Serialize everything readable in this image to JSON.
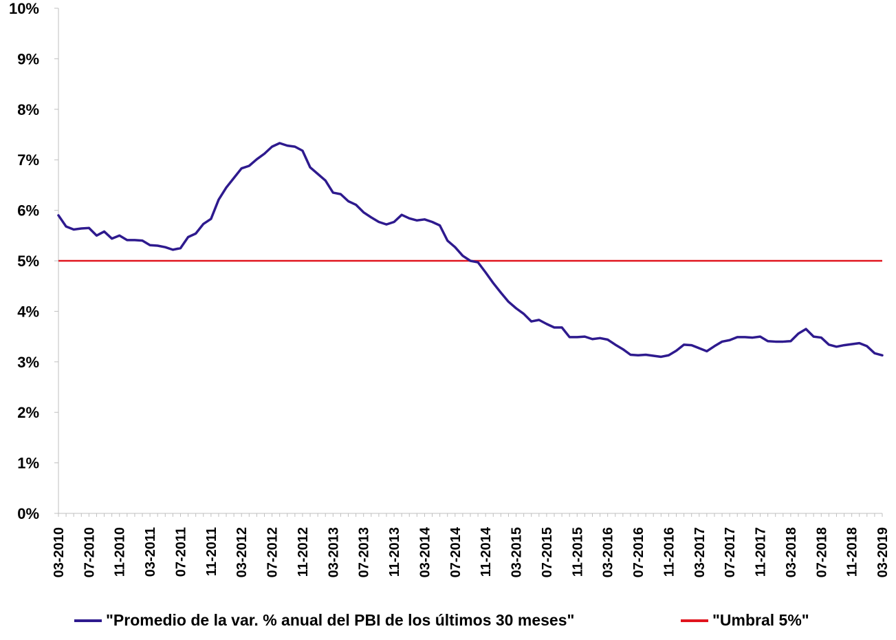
{
  "chart_data": {
    "type": "line",
    "title": "",
    "xlabel": "",
    "ylabel": "",
    "ylim": [
      0,
      10
    ],
    "y_ticks": [
      "0%",
      "1%",
      "2%",
      "3%",
      "4%",
      "5%",
      "6%",
      "7%",
      "8%",
      "9%",
      "10%"
    ],
    "x_tick_labels": [
      "03-2010",
      "07-2010",
      "11-2010",
      "03-2011",
      "07-2011",
      "11-2011",
      "03-2012",
      "07-2012",
      "11-2012",
      "03-2013",
      "07-2013",
      "11-2013",
      "03-2014",
      "07-2014",
      "11-2014",
      "03-2015",
      "07-2015",
      "11-2015",
      "03-2016",
      "07-2016",
      "11-2016",
      "03-2017",
      "07-2017",
      "11-2017",
      "03-2018",
      "07-2018",
      "11-2018",
      "03-2019"
    ],
    "x_months": [
      "03-2010",
      "04-2010",
      "05-2010",
      "06-2010",
      "07-2010",
      "08-2010",
      "09-2010",
      "10-2010",
      "11-2010",
      "12-2010",
      "01-2011",
      "02-2011",
      "03-2011",
      "04-2011",
      "05-2011",
      "06-2011",
      "07-2011",
      "08-2011",
      "09-2011",
      "10-2011",
      "11-2011",
      "12-2011",
      "01-2012",
      "02-2012",
      "03-2012",
      "04-2012",
      "05-2012",
      "06-2012",
      "07-2012",
      "08-2012",
      "09-2012",
      "10-2012",
      "11-2012",
      "12-2012",
      "01-2013",
      "02-2013",
      "03-2013",
      "04-2013",
      "05-2013",
      "06-2013",
      "07-2013",
      "08-2013",
      "09-2013",
      "10-2013",
      "11-2013",
      "12-2013",
      "01-2014",
      "02-2014",
      "03-2014",
      "04-2014",
      "05-2014",
      "06-2014",
      "07-2014",
      "08-2014",
      "09-2014",
      "10-2014",
      "11-2014",
      "12-2014",
      "01-2015",
      "02-2015",
      "03-2015",
      "04-2015",
      "05-2015",
      "06-2015",
      "07-2015",
      "08-2015",
      "09-2015",
      "10-2015",
      "11-2015",
      "12-2015",
      "01-2016",
      "02-2016",
      "03-2016",
      "04-2016",
      "05-2016",
      "06-2016",
      "07-2016",
      "08-2016",
      "09-2016",
      "10-2016",
      "11-2016",
      "12-2016",
      "01-2017",
      "02-2017",
      "03-2017",
      "04-2017",
      "05-2017",
      "06-2017",
      "07-2017",
      "08-2017",
      "09-2017",
      "10-2017",
      "11-2017",
      "12-2017",
      "01-2018",
      "02-2018",
      "03-2018",
      "04-2018",
      "05-2018",
      "06-2018",
      "07-2018",
      "08-2018",
      "09-2018",
      "10-2018",
      "11-2018",
      "12-2018",
      "01-2019",
      "02-2019",
      "03-2019"
    ],
    "series": [
      {
        "name": "\"Promedio de la var. % anual del PBI de los últimos 30 meses\"",
        "color": "#2E1A8E",
        "values": [
          5.9,
          5.68,
          5.62,
          5.64,
          5.65,
          5.5,
          5.58,
          5.44,
          5.5,
          5.41,
          5.41,
          5.4,
          5.31,
          5.3,
          5.27,
          5.22,
          5.25,
          5.47,
          5.54,
          5.73,
          5.83,
          6.21,
          6.45,
          6.64,
          6.83,
          6.88,
          7.01,
          7.12,
          7.26,
          7.33,
          7.28,
          7.26,
          7.18,
          6.85,
          6.72,
          6.59,
          6.35,
          6.32,
          6.18,
          6.11,
          5.96,
          5.86,
          5.77,
          5.72,
          5.77,
          5.91,
          5.84,
          5.8,
          5.82,
          5.77,
          5.7,
          5.4,
          5.27,
          5.1,
          5.0,
          4.97,
          4.77,
          4.56,
          4.37,
          4.19,
          4.06,
          3.95,
          3.8,
          3.83,
          3.75,
          3.68,
          3.68,
          3.49,
          3.49,
          3.5,
          3.45,
          3.47,
          3.44,
          3.34,
          3.25,
          3.14,
          3.13,
          3.14,
          3.12,
          3.1,
          3.13,
          3.22,
          3.34,
          3.33,
          3.27,
          3.21,
          3.31,
          3.4,
          3.43,
          3.49,
          3.49,
          3.48,
          3.5,
          3.41,
          3.4,
          3.4,
          3.41,
          3.56,
          3.65,
          3.5,
          3.48,
          3.34,
          3.3,
          3.33,
          3.35,
          3.37,
          3.31,
          3.17,
          3.13
        ]
      },
      {
        "name": "\"Umbral 5%\"",
        "color": "#E0141E",
        "constant": 5
      }
    ],
    "grid": false,
    "legend_position": "bottom"
  }
}
